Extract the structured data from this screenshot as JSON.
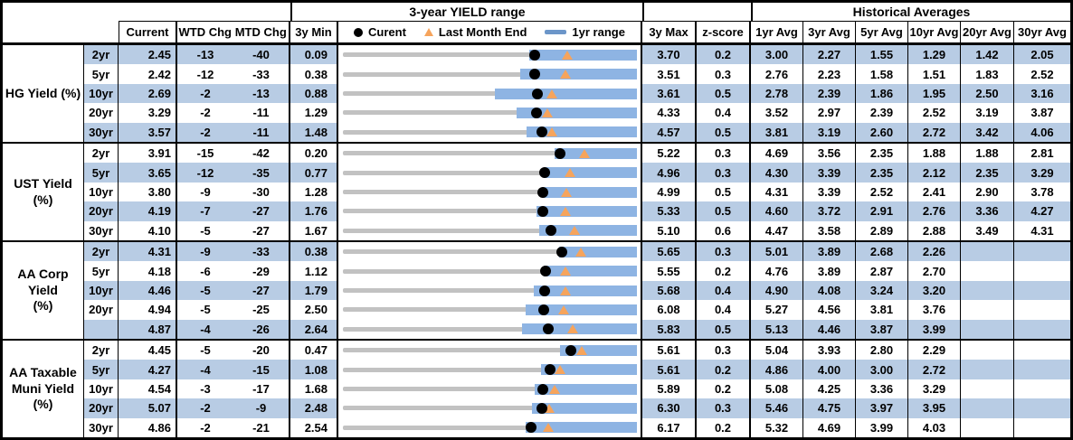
{
  "title_row": {
    "chart_group": "3-year YIELD range",
    "historical_group": "Historical Averages"
  },
  "columns": {
    "current": "Current",
    "wtd_chg": "WTD Chg",
    "mtd_chg": "MTD Chg",
    "min_3y": "3y Min",
    "max_3y": "3y Max",
    "zscore": "z-score",
    "averages": [
      "1yr Avg",
      "3yr Avg",
      "5yr Avg",
      "10yr Avg",
      "20yr Avg",
      "30yr Avg"
    ]
  },
  "legend": {
    "current": "Curent",
    "last_month_end": "Last Month End",
    "range_1yr": "1yr range"
  },
  "colors": {
    "stripe": "#B8CCE4",
    "bar_blue": "#8EB4E3",
    "legend_dash_blue": "#6C96C9",
    "triangle_orange": "#F6A45C",
    "track_gray": "#C2C2C2",
    "dot_black": "#000000"
  },
  "chart_data": {
    "type": "bullet-range",
    "note": "Each row's horizontal band maps its own 3y Min..3y Max to full track width; blue bar is 1yr range (high coincides with 3y Max); dot=current, triangle=last month end.",
    "sections": [
      {
        "label": "HG Yield (%)",
        "rows": [
          {
            "tenor": "2yr",
            "current": "2.45",
            "wtd_chg": "-13",
            "mtd_chg": "-40",
            "min_3y": "0.09",
            "max_3y": "3.70",
            "zscore": "0.2",
            "averages": [
              "3.00",
              "2.27",
              "1.55",
              "1.29",
              "1.42",
              "2.05"
            ],
            "markers": {
              "current": 2.45,
              "last_month_end": 2.85,
              "range_1y_low": 2.38,
              "range_1y_high": 3.7
            }
          },
          {
            "tenor": "5yr",
            "current": "2.42",
            "wtd_chg": "-12",
            "mtd_chg": "-33",
            "min_3y": "0.38",
            "max_3y": "3.51",
            "zscore": "0.3",
            "averages": [
              "2.76",
              "2.23",
              "1.58",
              "1.51",
              "1.83",
              "2.52"
            ],
            "markers": {
              "current": 2.42,
              "last_month_end": 2.75,
              "range_1y_low": 2.27,
              "range_1y_high": 3.51
            }
          },
          {
            "tenor": "10yr",
            "current": "2.69",
            "wtd_chg": "-2",
            "mtd_chg": "-13",
            "min_3y": "0.88",
            "max_3y": "3.61",
            "zscore": "0.5",
            "averages": [
              "2.78",
              "2.39",
              "1.86",
              "1.95",
              "2.50",
              "3.16"
            ],
            "markers": {
              "current": 2.69,
              "last_month_end": 2.82,
              "range_1y_low": 2.29,
              "range_1y_high": 3.61
            }
          },
          {
            "tenor": "20yr",
            "current": "3.29",
            "wtd_chg": "-2",
            "mtd_chg": "-11",
            "min_3y": "1.29",
            "max_3y": "4.33",
            "zscore": "0.4",
            "averages": [
              "3.52",
              "2.97",
              "2.39",
              "2.52",
              "3.19",
              "3.87"
            ],
            "markers": {
              "current": 3.29,
              "last_month_end": 3.4,
              "range_1y_low": 3.09,
              "range_1y_high": 4.33
            }
          },
          {
            "tenor": "30yr",
            "current": "3.57",
            "wtd_chg": "-2",
            "mtd_chg": "-11",
            "min_3y": "1.48",
            "max_3y": "4.57",
            "zscore": "0.5",
            "averages": [
              "3.81",
              "3.19",
              "2.60",
              "2.72",
              "3.42",
              "4.06"
            ],
            "markers": {
              "current": 3.57,
              "last_month_end": 3.68,
              "range_1y_low": 3.41,
              "range_1y_high": 4.57
            }
          }
        ]
      },
      {
        "label": "UST Yield (%)",
        "rows": [
          {
            "tenor": "2yr",
            "current": "3.91",
            "wtd_chg": "-15",
            "mtd_chg": "-42",
            "min_3y": "0.20",
            "max_3y": "5.22",
            "zscore": "0.3",
            "averages": [
              "4.69",
              "3.56",
              "2.35",
              "1.88",
              "1.88",
              "2.81"
            ],
            "markers": {
              "current": 3.91,
              "last_month_end": 4.33,
              "range_1y_low": 3.82,
              "range_1y_high": 5.22
            }
          },
          {
            "tenor": "5yr",
            "current": "3.65",
            "wtd_chg": "-12",
            "mtd_chg": "-35",
            "min_3y": "0.77",
            "max_3y": "4.96",
            "zscore": "0.3",
            "averages": [
              "4.30",
              "3.39",
              "2.35",
              "2.12",
              "2.35",
              "3.29"
            ],
            "markers": {
              "current": 3.65,
              "last_month_end": 4.0,
              "range_1y_low": 3.63,
              "range_1y_high": 4.96
            }
          },
          {
            "tenor": "10yr",
            "current": "3.80",
            "wtd_chg": "-9",
            "mtd_chg": "-30",
            "min_3y": "1.28",
            "max_3y": "4.99",
            "zscore": "0.5",
            "averages": [
              "4.31",
              "3.39",
              "2.52",
              "2.41",
              "2.90",
              "3.78"
            ],
            "markers": {
              "current": 3.8,
              "last_month_end": 4.1,
              "range_1y_low": 3.79,
              "range_1y_high": 4.99
            }
          },
          {
            "tenor": "20yr",
            "current": "4.19",
            "wtd_chg": "-7",
            "mtd_chg": "-27",
            "min_3y": "1.76",
            "max_3y": "5.33",
            "zscore": "0.5",
            "averages": [
              "4.60",
              "3.72",
              "2.91",
              "2.76",
              "3.36",
              "4.27"
            ],
            "markers": {
              "current": 4.19,
              "last_month_end": 4.46,
              "range_1y_low": 4.11,
              "range_1y_high": 5.33
            }
          },
          {
            "tenor": "30yr",
            "current": "4.10",
            "wtd_chg": "-5",
            "mtd_chg": "-27",
            "min_3y": "1.67",
            "max_3y": "5.10",
            "zscore": "0.6",
            "averages": [
              "4.47",
              "3.58",
              "2.89",
              "2.88",
              "3.49",
              "4.31"
            ],
            "markers": {
              "current": 4.1,
              "last_month_end": 4.37,
              "range_1y_low": 3.96,
              "range_1y_high": 5.1
            }
          }
        ]
      },
      {
        "label": "AA Corp Yield\n(%)",
        "rows": [
          {
            "tenor": "2yr",
            "current": "4.31",
            "wtd_chg": "-9",
            "mtd_chg": "-33",
            "min_3y": "0.38",
            "max_3y": "5.65",
            "zscore": "0.3",
            "averages": [
              "5.01",
              "3.89",
              "2.68",
              "2.26",
              "",
              ""
            ],
            "markers": {
              "current": 4.31,
              "last_month_end": 4.64,
              "range_1y_low": 4.26,
              "range_1y_high": 5.65
            }
          },
          {
            "tenor": "5yr",
            "current": "4.18",
            "wtd_chg": "-6",
            "mtd_chg": "-29",
            "min_3y": "1.12",
            "max_3y": "5.55",
            "zscore": "0.2",
            "averages": [
              "4.76",
              "3.89",
              "2.87",
              "2.70",
              "",
              ""
            ],
            "markers": {
              "current": 4.18,
              "last_month_end": 4.47,
              "range_1y_low": 4.14,
              "range_1y_high": 5.55
            }
          },
          {
            "tenor": "10yr",
            "current": "4.46",
            "wtd_chg": "-5",
            "mtd_chg": "-27",
            "min_3y": "1.79",
            "max_3y": "5.68",
            "zscore": "0.4",
            "averages": [
              "4.90",
              "4.08",
              "3.24",
              "3.20",
              "",
              ""
            ],
            "markers": {
              "current": 4.46,
              "last_month_end": 4.73,
              "range_1y_low": 4.32,
              "range_1y_high": 5.68
            }
          },
          {
            "tenor": "20yr",
            "current": "4.94",
            "wtd_chg": "-5",
            "mtd_chg": "-25",
            "min_3y": "2.50",
            "max_3y": "6.08",
            "zscore": "0.4",
            "averages": [
              "5.27",
              "4.56",
              "3.81",
              "3.76",
              "",
              ""
            ],
            "markers": {
              "current": 4.94,
              "last_month_end": 5.19,
              "range_1y_low": 4.72,
              "range_1y_high": 6.08
            }
          },
          {
            "tenor": "",
            "current": "4.87",
            "wtd_chg": "-4",
            "mtd_chg": "-26",
            "min_3y": "2.64",
            "max_3y": "5.83",
            "zscore": "0.5",
            "averages": [
              "5.13",
              "4.46",
              "3.87",
              "3.99",
              "",
              ""
            ],
            "markers": {
              "current": 4.87,
              "last_month_end": 5.13,
              "range_1y_low": 4.58,
              "range_1y_high": 5.83
            }
          }
        ]
      },
      {
        "label": "AA Taxable\nMuni Yield\n(%)",
        "rows": [
          {
            "tenor": "2yr",
            "current": "4.45",
            "wtd_chg": "-5",
            "mtd_chg": "-20",
            "min_3y": "0.47",
            "max_3y": "5.61",
            "zscore": "0.3",
            "averages": [
              "5.04",
              "3.93",
              "2.80",
              "2.29",
              "",
              ""
            ],
            "markers": {
              "current": 4.45,
              "last_month_end": 4.65,
              "range_1y_low": 4.27,
              "range_1y_high": 5.61
            }
          },
          {
            "tenor": "5yr",
            "current": "4.27",
            "wtd_chg": "-4",
            "mtd_chg": "-15",
            "min_3y": "1.08",
            "max_3y": "5.61",
            "zscore": "0.2",
            "averages": [
              "4.86",
              "4.00",
              "3.00",
              "2.72",
              "",
              ""
            ],
            "markers": {
              "current": 4.27,
              "last_month_end": 4.42,
              "range_1y_low": 4.13,
              "range_1y_high": 5.61
            }
          },
          {
            "tenor": "10yr",
            "current": "4.54",
            "wtd_chg": "-3",
            "mtd_chg": "-17",
            "min_3y": "1.68",
            "max_3y": "5.89",
            "zscore": "0.2",
            "averages": [
              "5.08",
              "4.25",
              "3.36",
              "3.29",
              "",
              ""
            ],
            "markers": {
              "current": 4.54,
              "last_month_end": 4.71,
              "range_1y_low": 4.42,
              "range_1y_high": 5.89
            }
          },
          {
            "tenor": "20yr",
            "current": "5.07",
            "wtd_chg": "-2",
            "mtd_chg": "-9",
            "min_3y": "2.48",
            "max_3y": "6.30",
            "zscore": "0.3",
            "averages": [
              "5.46",
              "4.75",
              "3.97",
              "3.95",
              "",
              ""
            ],
            "markers": {
              "current": 5.07,
              "last_month_end": 5.16,
              "range_1y_low": 4.94,
              "range_1y_high": 6.3
            }
          },
          {
            "tenor": "30yr",
            "current": "4.86",
            "wtd_chg": "-2",
            "mtd_chg": "-21",
            "min_3y": "2.54",
            "max_3y": "6.17",
            "zscore": "0.2",
            "averages": [
              "5.32",
              "4.69",
              "3.99",
              "4.03",
              "",
              ""
            ],
            "markers": {
              "current": 4.86,
              "last_month_end": 5.07,
              "range_1y_low": 4.8,
              "range_1y_high": 6.17
            }
          }
        ]
      }
    ]
  }
}
